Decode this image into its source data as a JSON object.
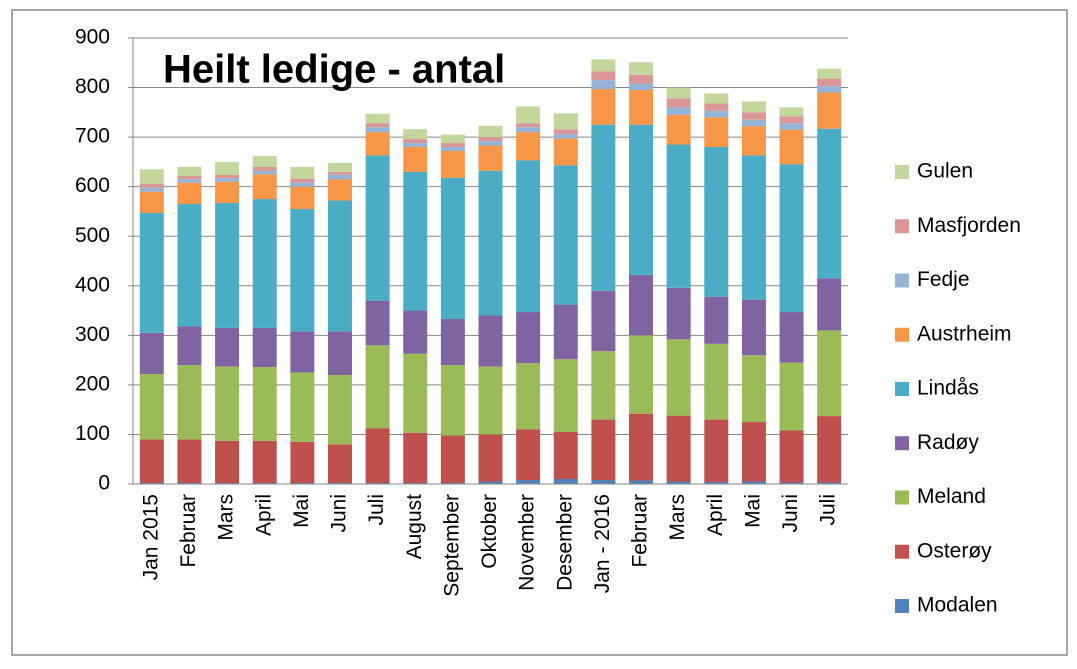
{
  "chart_data": {
    "type": "stacked_bar",
    "title": "Heilt ledige - antal",
    "categories": [
      "Jan 2015",
      "Februar",
      "Mars",
      "April",
      "Mai",
      "Juni",
      "Juli",
      "August",
      "September",
      "Oktober",
      "November",
      "Desember",
      "Jan - 2016",
      "Februar",
      "Mars",
      "April",
      "Mai",
      "Juni",
      "Juli"
    ],
    "series": [
      {
        "name": "Modalen",
        "color": "#4f81bd",
        "values": [
          2,
          2,
          2,
          2,
          2,
          2,
          2,
          2,
          2,
          5,
          8,
          10,
          8,
          7,
          5,
          4,
          5,
          3,
          3
        ]
      },
      {
        "name": "Osterøy",
        "color": "#c0504d",
        "values": [
          88,
          88,
          85,
          85,
          83,
          78,
          110,
          101,
          96,
          95,
          102,
          95,
          122,
          135,
          133,
          126,
          120,
          105,
          134
        ]
      },
      {
        "name": "Meland",
        "color": "#9bbb59",
        "values": [
          132,
          150,
          150,
          149,
          140,
          140,
          168,
          160,
          142,
          137,
          134,
          147,
          138,
          158,
          154,
          153,
          135,
          137,
          173
        ]
      },
      {
        "name": "Radøy",
        "color": "#8064a2",
        "values": [
          83,
          78,
          78,
          79,
          83,
          88,
          90,
          87,
          93,
          103,
          103,
          110,
          122,
          122,
          104,
          95,
          112,
          102,
          105
        ]
      },
      {
        "name": "Lindås",
        "color": "#4bacc6",
        "values": [
          242,
          247,
          252,
          260,
          247,
          264,
          293,
          280,
          285,
          292,
          306,
          281,
          335,
          303,
          289,
          302,
          291,
          298,
          302
        ]
      },
      {
        "name": "Austrheim",
        "color": "#f79646",
        "values": [
          43,
          43,
          43,
          50,
          45,
          43,
          47,
          50,
          54,
          51,
          57,
          54,
          72,
          70,
          60,
          60,
          59,
          70,
          73
        ]
      },
      {
        "name": "Fedje",
        "color": "#95b3d7",
        "values": [
          8,
          7,
          7,
          7,
          8,
          9,
          10,
          8,
          8,
          9,
          10,
          9,
          18,
          13,
          15,
          13,
          13,
          13,
          13
        ]
      },
      {
        "name": "Masfjorden",
        "color": "#d99694",
        "values": [
          8,
          7,
          7,
          8,
          8,
          6,
          8,
          8,
          8,
          8,
          8,
          10,
          18,
          18,
          18,
          15,
          15,
          14,
          15
        ]
      },
      {
        "name": "Gulen",
        "color": "#c3d69b",
        "values": [
          29,
          18,
          26,
          22,
          24,
          18,
          19,
          20,
          17,
          23,
          34,
          32,
          24,
          25,
          22,
          20,
          22,
          18,
          20
        ]
      }
    ],
    "ylim": [
      0,
      900
    ],
    "yticks": [
      0,
      100,
      200,
      300,
      400,
      500,
      600,
      700,
      800,
      900
    ],
    "grid": true
  }
}
